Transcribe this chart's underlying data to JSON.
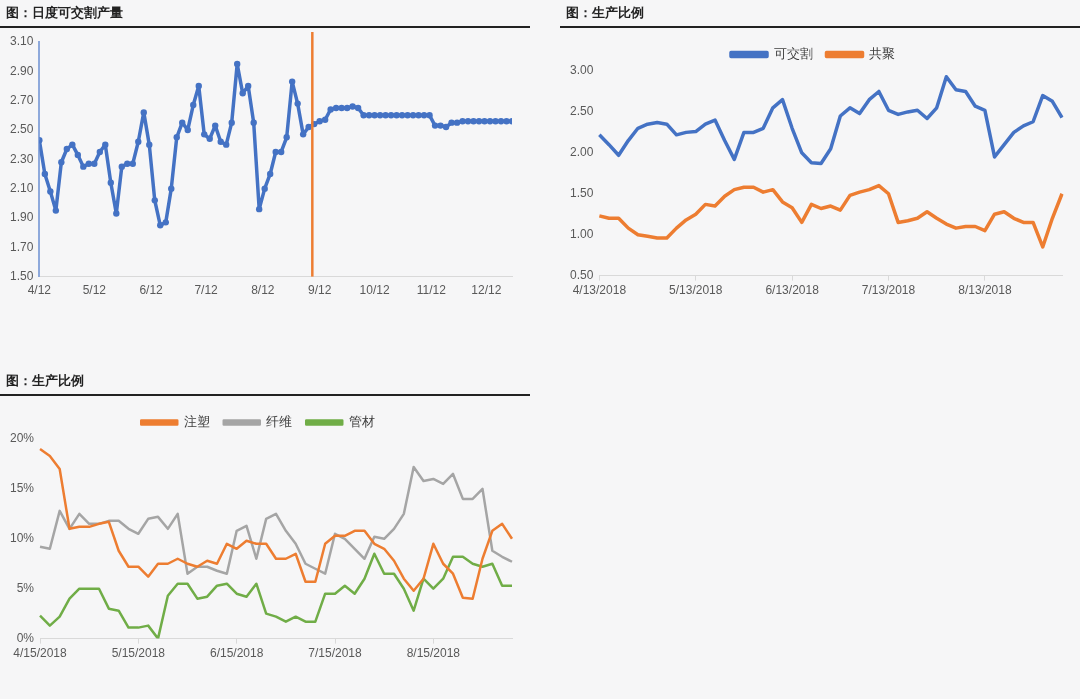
{
  "chart_data": [
    {
      "type": "line",
      "title": "图：日度可交割产量",
      "marker": "circle",
      "x": [
        "--04-12",
        "--04-15",
        "--04-18",
        "--04-21",
        "--04-24",
        "--04-27",
        "--04-30",
        "--05-03",
        "--05-06",
        "--05-09",
        "--05-12",
        "--05-15",
        "--05-18",
        "--05-21",
        "--05-24",
        "--05-27",
        "--05-30",
        "--06-02",
        "--06-05",
        "--06-08",
        "--06-11",
        "--06-14",
        "--06-17",
        "--06-20",
        "--06-23",
        "--06-26",
        "--06-29",
        "--07-02",
        "--07-05",
        "--07-08",
        "--07-11",
        "--07-14",
        "--07-17",
        "--07-20",
        "--07-23",
        "--07-26",
        "--07-29",
        "--08-01",
        "--08-04",
        "--08-07",
        "--08-10",
        "--08-13",
        "--08-16",
        "--08-19",
        "--08-22",
        "--08-25",
        "--08-28",
        "--08-31",
        "--09-03",
        "--09-06",
        "--09-09",
        "--09-12",
        "--09-15",
        "--09-18",
        "--09-21",
        "--09-24",
        "--09-27",
        "--09-30",
        "--10-03",
        "--10-06",
        "--10-09",
        "--10-12",
        "--10-15",
        "--10-18",
        "--10-21",
        "--10-24",
        "--10-27",
        "--10-30",
        "--11-02",
        "--11-05",
        "--11-08",
        "--11-11",
        "--11-14",
        "--11-17",
        "--11-20",
        "--11-23",
        "--11-26",
        "--11-29",
        "--12-02",
        "--12-05",
        "--12-08",
        "--12-11",
        "--12-14",
        "--12-17",
        "--12-20",
        "--12-23",
        "--12-26"
      ],
      "series": [
        {
          "color": "#4472c4",
          "values": [
            2.43,
            2.2,
            2.08,
            1.95,
            2.28,
            2.37,
            2.4,
            2.33,
            2.25,
            2.27,
            2.27,
            2.35,
            2.4,
            2.14,
            1.93,
            2.25,
            2.27,
            2.27,
            2.42,
            2.62,
            2.4,
            2.02,
            1.85,
            1.87,
            2.1,
            2.45,
            2.55,
            2.5,
            2.67,
            2.8,
            2.47,
            2.44,
            2.53,
            2.42,
            2.4,
            2.55,
            2.95,
            2.75,
            2.8,
            2.55,
            1.96,
            2.1,
            2.2,
            2.35,
            2.35,
            2.45,
            2.83,
            2.68,
            2.47,
            2.52,
            2.54,
            2.56,
            2.57,
            2.64,
            2.65,
            2.65,
            2.65,
            2.66,
            2.65,
            2.6,
            2.6,
            2.6,
            2.6,
            2.6,
            2.6,
            2.6,
            2.6,
            2.6,
            2.6,
            2.6,
            2.6,
            2.6,
            2.53,
            2.53,
            2.52,
            2.55,
            2.55,
            2.56,
            2.56,
            2.56,
            2.56,
            2.56,
            2.56,
            2.56,
            2.56,
            2.56,
            2.56
          ]
        }
      ],
      "xlim": [
        "--04-12",
        "--12-26"
      ],
      "xticks": [
        {
          "value": "--04-12",
          "label": "4/12"
        },
        {
          "value": "--05-12",
          "label": "5/12"
        },
        {
          "value": "--06-12",
          "label": "6/12"
        },
        {
          "value": "--07-12",
          "label": "7/12"
        },
        {
          "value": "--08-12",
          "label": "8/12"
        },
        {
          "value": "--09-12",
          "label": "9/12"
        },
        {
          "value": "--10-12",
          "label": "10/12"
        },
        {
          "value": "--11-12",
          "label": "11/12"
        },
        {
          "value": "--12-12",
          "label": "12/12"
        }
      ],
      "ylim": [
        1.5,
        3.1
      ],
      "yticks": [
        {
          "value": 1.5,
          "label": "1.50"
        },
        {
          "value": 1.7,
          "label": "1.70"
        },
        {
          "value": 1.9,
          "label": "1.90"
        },
        {
          "value": 2.1,
          "label": "2.10"
        },
        {
          "value": 2.3,
          "label": "2.30"
        },
        {
          "value": 2.5,
          "label": "2.50"
        },
        {
          "value": 2.7,
          "label": "2.70"
        },
        {
          "value": 2.9,
          "label": "2.90"
        },
        {
          "value": 3.1,
          "label": "3.10"
        }
      ],
      "ref_lines": [
        {
          "axis": "x",
          "value": "--09-08",
          "color": "#ed7d31"
        }
      ]
    },
    {
      "type": "line",
      "title": "图：生产比例",
      "legend": "top",
      "categories": [
        "4/13/2018",
        null,
        null,
        null,
        null,
        null,
        null,
        null,
        null,
        null,
        "5/13/2018",
        null,
        null,
        null,
        null,
        null,
        null,
        null,
        null,
        null,
        "6/13/2018",
        null,
        null,
        null,
        null,
        null,
        null,
        null,
        null,
        null,
        "7/13/2018",
        null,
        null,
        null,
        null,
        null,
        null,
        null,
        null,
        null,
        "8/13/2018",
        null,
        null,
        null,
        null,
        null,
        null,
        null,
        null
      ],
      "series": [
        {
          "name": "可交割",
          "color": "#4472c4",
          "values": [
            2.22,
            2.1,
            1.97,
            2.15,
            2.3,
            2.35,
            2.37,
            2.35,
            2.22,
            2.25,
            2.26,
            2.35,
            2.4,
            2.15,
            1.92,
            2.25,
            2.25,
            2.3,
            2.55,
            2.65,
            2.3,
            2.0,
            1.88,
            1.87,
            2.05,
            2.45,
            2.55,
            2.48,
            2.65,
            2.75,
            2.52,
            2.47,
            2.5,
            2.52,
            2.42,
            2.55,
            2.93,
            2.77,
            2.75,
            2.57,
            2.52,
            1.95,
            2.1,
            2.25,
            2.33,
            2.38,
            2.7,
            2.63,
            2.43
          ]
        },
        {
          "name": "共聚",
          "color": "#ed7d31",
          "values": [
            1.23,
            1.2,
            1.2,
            1.08,
            1.0,
            0.98,
            0.96,
            0.96,
            1.08,
            1.18,
            1.25,
            1.37,
            1.35,
            1.47,
            1.55,
            1.58,
            1.58,
            1.52,
            1.55,
            1.4,
            1.33,
            1.15,
            1.37,
            1.32,
            1.35,
            1.3,
            1.48,
            1.52,
            1.55,
            1.6,
            1.5,
            1.15,
            1.17,
            1.2,
            1.28,
            1.2,
            1.13,
            1.08,
            1.1,
            1.1,
            1.05,
            1.25,
            1.28,
            1.2,
            1.15,
            1.15,
            0.85,
            1.2,
            1.5
          ]
        }
      ],
      "ylim": [
        0.5,
        3.0
      ],
      "yticks": [
        {
          "value": 0.5,
          "label": "0.50"
        },
        {
          "value": 1.0,
          "label": "1.00"
        },
        {
          "value": 1.5,
          "label": "1.50"
        },
        {
          "value": 2.0,
          "label": "2.00"
        },
        {
          "value": 2.5,
          "label": "2.50"
        },
        {
          "value": 3.0,
          "label": "3.00"
        }
      ]
    },
    {
      "type": "line",
      "title": "图：生产比例",
      "legend": "top",
      "categories": [
        "4/15/2018",
        null,
        null,
        null,
        null,
        null,
        null,
        null,
        null,
        null,
        "5/15/2018",
        null,
        null,
        null,
        null,
        null,
        null,
        null,
        null,
        null,
        "6/15/2018",
        null,
        null,
        null,
        null,
        null,
        null,
        null,
        null,
        null,
        "7/15/2018",
        null,
        null,
        null,
        null,
        null,
        null,
        null,
        null,
        null,
        "8/15/2018",
        null,
        null,
        null,
        null,
        null,
        null,
        null,
        null
      ],
      "series": [
        {
          "name": "注塑",
          "color": "#ed7d31",
          "values": [
            19.0,
            18.3,
            17.0,
            11.0,
            11.2,
            11.2,
            11.5,
            11.7,
            8.8,
            7.2,
            7.2,
            6.2,
            7.5,
            7.5,
            8.0,
            7.5,
            7.2,
            7.8,
            7.5,
            9.5,
            9.0,
            9.8,
            9.5,
            9.5,
            8.0,
            8.0,
            8.5,
            5.7,
            5.7,
            9.5,
            10.3,
            10.3,
            10.8,
            10.8,
            9.5,
            9.0,
            7.8,
            6.0,
            4.8,
            6.0,
            9.5,
            7.5,
            6.5,
            4.1,
            4.0,
            8.0,
            10.8,
            11.5,
            10.0
          ]
        },
        {
          "name": "纤维",
          "color": "#a5a5a5",
          "values": [
            9.2,
            9.0,
            12.8,
            11.0,
            12.5,
            11.5,
            11.5,
            11.8,
            11.8,
            11.0,
            10.5,
            12.0,
            12.2,
            11.0,
            12.5,
            6.5,
            7.2,
            7.2,
            6.8,
            6.5,
            10.8,
            11.3,
            8.0,
            12.0,
            12.5,
            10.8,
            9.5,
            7.5,
            7.0,
            6.5,
            10.5,
            10.0,
            9.0,
            8.0,
            10.2,
            10.0,
            11.0,
            12.5,
            17.2,
            15.8,
            16.0,
            15.5,
            16.5,
            14.0,
            14.0,
            15.0,
            8.8,
            8.2,
            7.7
          ]
        },
        {
          "name": "管材",
          "color": "#70ad47",
          "values": [
            2.3,
            1.3,
            2.2,
            4.0,
            5.0,
            5.0,
            5.0,
            3.0,
            2.8,
            1.1,
            1.1,
            1.3,
            0.0,
            4.3,
            5.5,
            5.5,
            4.0,
            4.2,
            5.3,
            5.5,
            4.5,
            4.2,
            5.5,
            2.5,
            2.2,
            1.7,
            2.2,
            1.7,
            1.7,
            4.5,
            4.5,
            5.3,
            4.5,
            6.0,
            8.5,
            6.5,
            6.5,
            5.0,
            2.8,
            6.0,
            5.0,
            6.0,
            8.2,
            8.2,
            7.5,
            7.2,
            7.5,
            5.3,
            5.3
          ]
        }
      ],
      "ylim": [
        0,
        20
      ],
      "yticks": [
        {
          "value": 0,
          "label": "0%"
        },
        {
          "value": 5,
          "label": "5%"
        },
        {
          "value": 10,
          "label": "10%"
        },
        {
          "value": 15,
          "label": "15%"
        },
        {
          "value": 20,
          "label": "20%"
        }
      ]
    }
  ]
}
